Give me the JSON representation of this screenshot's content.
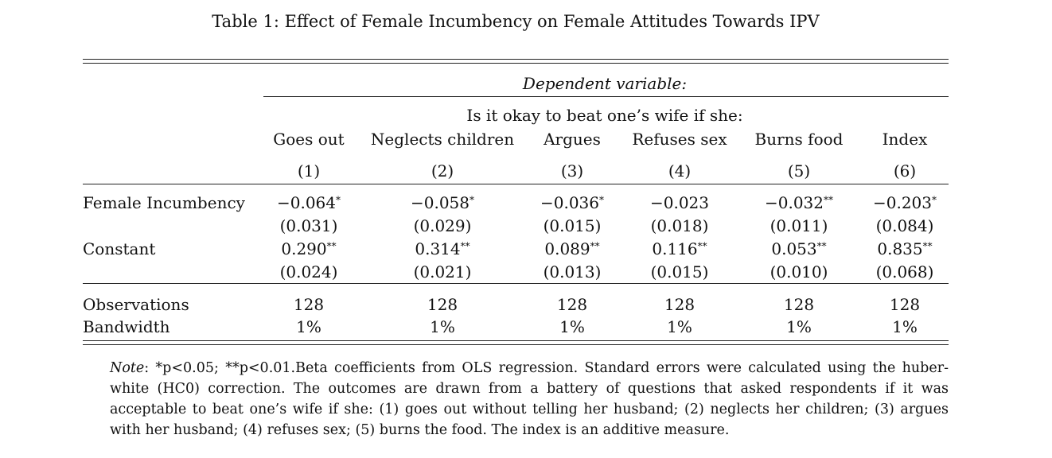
{
  "caption": "Table 1: Effect of Female Incumbency on Female Attitudes Towards IPV",
  "dependent_variable_label": "Dependent variable:",
  "question_label": "Is it okay to beat one’s wife if she:",
  "columns": [
    {
      "name": "Goes out",
      "number": "(1)"
    },
    {
      "name": "Neglects children",
      "number": "(2)"
    },
    {
      "name": "Argues",
      "number": "(3)"
    },
    {
      "name": "Refuses sex",
      "number": "(4)"
    },
    {
      "name": "Burns food",
      "number": "(5)"
    },
    {
      "name": "Index",
      "number": "(6)"
    }
  ],
  "rows": [
    {
      "label": "Female Incumbency",
      "coefficients": [
        {
          "value": "−0.064",
          "stars": "*"
        },
        {
          "value": "−0.058",
          "stars": "*"
        },
        {
          "value": "−0.036",
          "stars": "*"
        },
        {
          "value": "−0.023",
          "stars": ""
        },
        {
          "value": "−0.032",
          "stars": "**"
        },
        {
          "value": "−0.203",
          "stars": "*"
        }
      ],
      "std_errors": [
        "(0.031)",
        "(0.029)",
        "(0.015)",
        "(0.018)",
        "(0.011)",
        "(0.084)"
      ]
    },
    {
      "label": "Constant",
      "coefficients": [
        {
          "value": "0.290",
          "stars": "**"
        },
        {
          "value": "0.314",
          "stars": "**"
        },
        {
          "value": "0.089",
          "stars": "**"
        },
        {
          "value": "0.116",
          "stars": "**"
        },
        {
          "value": "0.053",
          "stars": "**"
        },
        {
          "value": "0.835",
          "stars": "**"
        }
      ],
      "std_errors": [
        "(0.024)",
        "(0.021)",
        "(0.013)",
        "(0.015)",
        "(0.010)",
        "(0.068)"
      ]
    }
  ],
  "stats": [
    {
      "label": "Observations",
      "values": [
        "128",
        "128",
        "128",
        "128",
        "128",
        "128"
      ]
    },
    {
      "label": "Bandwidth",
      "values": [
        "1%",
        "1%",
        "1%",
        "1%",
        "1%",
        "1%"
      ]
    }
  ],
  "note": {
    "lead": "Note",
    "text": ": *p<0.05; **p<0.01.Beta coefficients from OLS regression. Standard errors were calculated using the huber-white (HC0) correction. The outcomes are drawn from a battery of questions that asked respondents if it was acceptable to beat one’s wife if she: (1) goes out without telling her husband; (2) neglects her children; (3) argues with her husband; (4) refuses sex; (5) burns the food. The index is an additive measure."
  }
}
